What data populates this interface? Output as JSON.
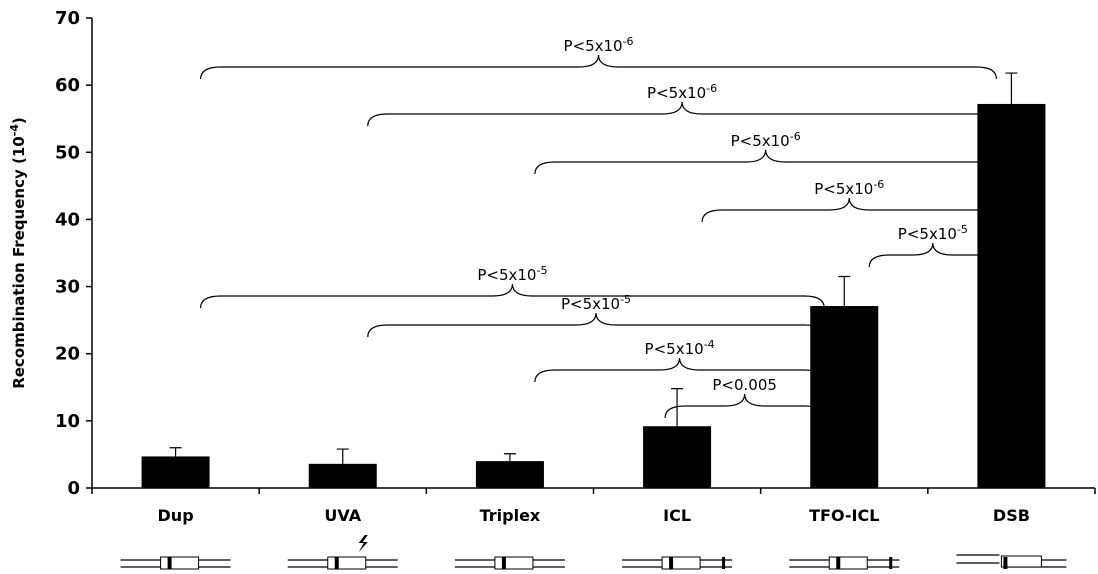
{
  "chart_data": {
    "type": "bar",
    "y_label": {
      "text": "Recombination Frequency (10",
      "sup": "-4",
      "close": ")"
    },
    "categories": [
      "Dup",
      "UVA",
      "Triplex",
      "ICL",
      "TFO-ICL",
      "DSB"
    ],
    "values": [
      4.7,
      3.6,
      4.0,
      9.2,
      27.1,
      57.2
    ],
    "errors": [
      1.3,
      2.2,
      1.1,
      5.6,
      4.4,
      4.6
    ],
    "color": "#000000",
    "ylim": [
      0,
      70
    ],
    "yticks": [
      0,
      10,
      20,
      30,
      40,
      50,
      60,
      70
    ],
    "annotations": [
      {
        "from": "Dup",
        "to": "DSB",
        "label": "P<5x10",
        "sup": "-6"
      },
      {
        "from": "UVA",
        "to": "DSB",
        "label": "P<5x10",
        "sup": "-6"
      },
      {
        "from": "Triplex",
        "to": "DSB",
        "label": "P<5x10",
        "sup": "-6"
      },
      {
        "from": "ICL",
        "to": "DSB",
        "label": "P<5x10",
        "sup": "-6"
      },
      {
        "from": "TFO-ICL",
        "to": "DSB",
        "label": "P<5x10",
        "sup": "-5"
      },
      {
        "from": "Dup",
        "to": "TFO-ICL",
        "label": "P<5x10",
        "sup": "-5"
      },
      {
        "from": "UVA",
        "to": "TFO-ICL",
        "label": "P<5x10",
        "sup": "-5"
      },
      {
        "from": "Triplex",
        "to": "TFO-ICL",
        "label": "P<5x10",
        "sup": "-4"
      },
      {
        "from": "ICL",
        "to": "TFO-ICL",
        "label": "P<0.005"
      }
    ]
  }
}
